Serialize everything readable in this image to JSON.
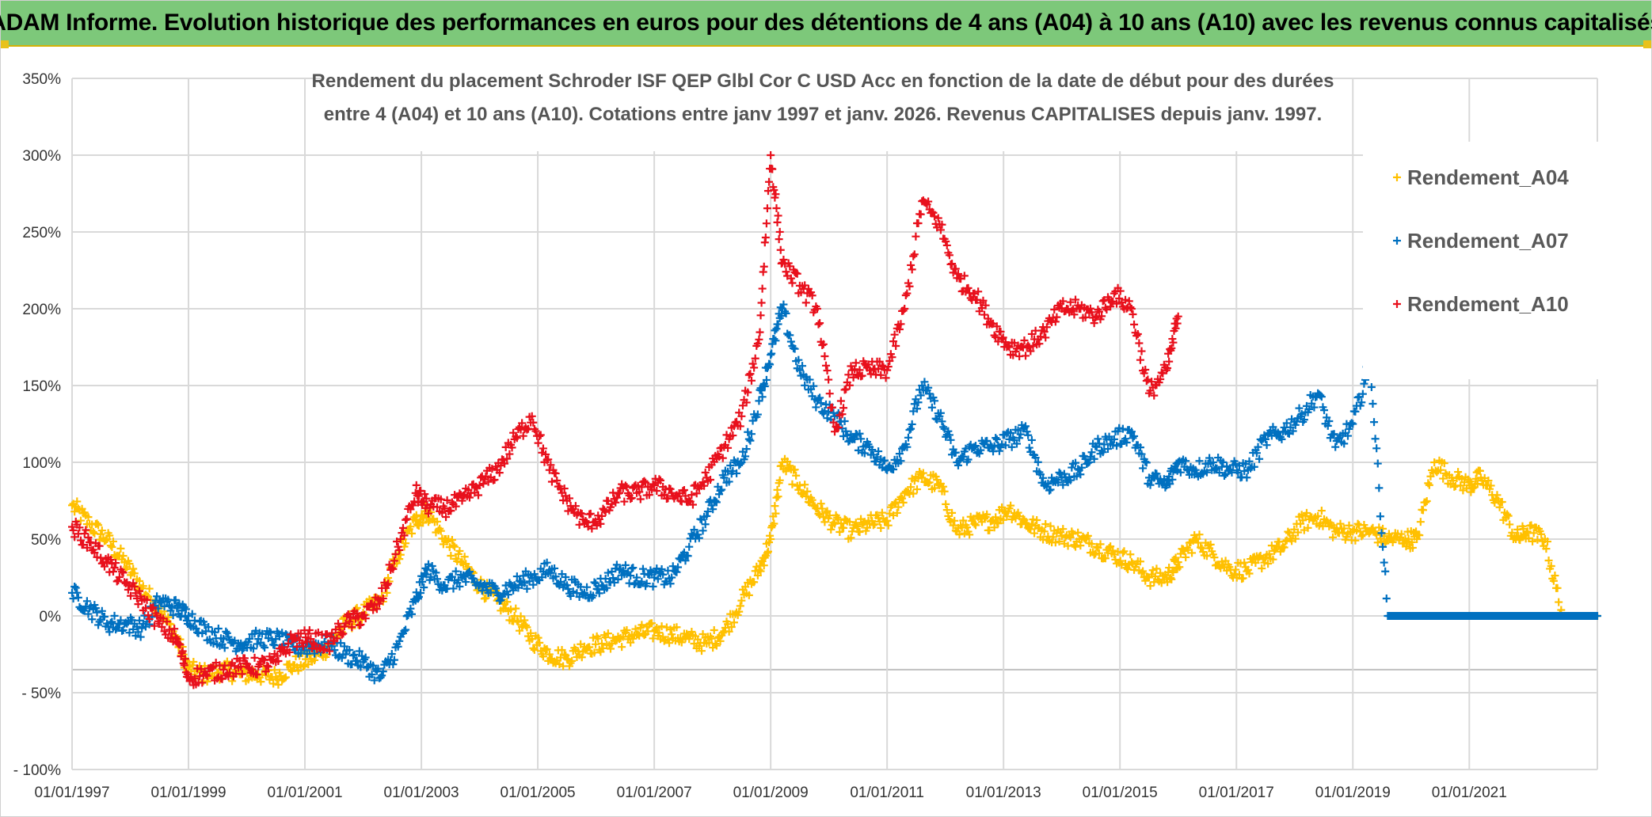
{
  "banner": {
    "title": "ADAM Informe. Evolution historique des performances en euros pour des détentions de 4 ans (A04) à 10 ans (A10) avec les revenus connus capitalisés"
  },
  "colors": {
    "banner_bg": "#7dc87a",
    "A04": "#ffc000",
    "A07": "#0070c0",
    "A10": "#e8101c",
    "grid": "#d9d9d9"
  },
  "chart_data": {
    "type": "scatter",
    "title_lines": [
      "Rendement du placement Schroder ISF QEP Glbl Cor C USD Acc en fonction de la date de début pour des durées",
      "entre 4 (A04) et 10 ans (A10). Cotations entre janv 1997 et janv. 2026. Revenus CAPITALISES depuis janv. 1997."
    ],
    "x_tick_labels": [
      "01/01/1997",
      "01/01/1999",
      "01/01/2001",
      "01/01/2003",
      "01/01/2005",
      "01/01/2007",
      "01/01/2009",
      "01/01/2011",
      "01/01/2013",
      "01/01/2015",
      "01/01/2017",
      "01/01/2019",
      "01/01/2021"
    ],
    "x_ticks": [
      1997,
      1999,
      2001,
      2003,
      2005,
      2007,
      2009,
      2011,
      2013,
      2015,
      2017,
      2019,
      2021
    ],
    "xlim": [
      1997,
      2023.2
    ],
    "y_ticks": [
      -100,
      -50,
      0,
      50,
      100,
      150,
      200,
      250,
      300,
      350
    ],
    "y_tick_labels": [
      "- 100%",
      "- 50%",
      "0%",
      "50%",
      "100%",
      "150%",
      "200%",
      "250%",
      "300%",
      "350%"
    ],
    "ylim": [
      -100,
      350
    ],
    "grid": true,
    "marker": "+",
    "legend_position": "top-right",
    "series": [
      {
        "name": "Rendement_A04",
        "color": "#ffc000",
        "x": [
          1997.0,
          1997.3,
          1997.6,
          1997.9,
          1998.2,
          1998.5,
          1998.8,
          1999.0,
          1999.3,
          1999.6,
          1999.9,
          2000.2,
          2000.5,
          2000.8,
          2001.1,
          2001.4,
          2001.7,
          2002.0,
          2002.3,
          2002.6,
          2002.9,
          2003.1,
          2003.4,
          2003.7,
          2004.0,
          2004.3,
          2004.6,
          2004.9,
          2005.2,
          2005.5,
          2005.8,
          2006.1,
          2006.4,
          2006.7,
          2007.0,
          2007.3,
          2007.6,
          2007.9,
          2008.2,
          2008.5,
          2008.8,
          2009.0,
          2009.2,
          2009.5,
          2009.8,
          2010.1,
          2010.4,
          2010.7,
          2011.0,
          2011.3,
          2011.6,
          2011.9,
          2012.2,
          2012.5,
          2012.8,
          2013.1,
          2013.4,
          2013.7,
          2014.0,
          2014.3,
          2014.6,
          2014.9,
          2015.2,
          2015.5,
          2015.8,
          2016.0,
          2016.3,
          2016.6,
          2016.9,
          2017.2,
          2017.5,
          2017.8,
          2018.1,
          2018.4,
          2018.7,
          2019.0,
          2019.3,
          2019.6,
          2019.9,
          2020.1,
          2020.4,
          2020.7,
          2021.0,
          2021.2,
          2021.5,
          2021.8,
          2022.0,
          2022.3,
          2022.6,
          2022.9,
          2023.2
        ],
        "y": [
          72,
          60,
          50,
          35,
          18,
          5,
          -15,
          -35,
          -38,
          -35,
          -38,
          -38,
          -40,
          -32,
          -28,
          -20,
          -5,
          2,
          10,
          40,
          62,
          68,
          50,
          35,
          20,
          10,
          0,
          -15,
          -25,
          -28,
          -20,
          -18,
          -15,
          -12,
          -10,
          -12,
          -15,
          -18,
          -10,
          10,
          30,
          50,
          100,
          85,
          70,
          60,
          55,
          60,
          62,
          80,
          90,
          85,
          55,
          60,
          62,
          70,
          60,
          55,
          52,
          50,
          45,
          40,
          35,
          25,
          25,
          35,
          50,
          40,
          30,
          30,
          38,
          45,
          60,
          65,
          55,
          55,
          55,
          50,
          50,
          50,
          100,
          90,
          85,
          90,
          75,
          50,
          55,
          50,
          0,
          0,
          0
        ]
      },
      {
        "name": "Rendement_A07",
        "color": "#0070c0",
        "x": [
          1997.0,
          1997.3,
          1997.6,
          1997.9,
          1998.2,
          1998.5,
          1998.8,
          1999.0,
          1999.3,
          1999.6,
          1999.9,
          2000.2,
          2000.5,
          2000.8,
          2001.1,
          2001.4,
          2001.7,
          2002.0,
          2002.3,
          2002.6,
          2002.9,
          2003.1,
          2003.4,
          2003.7,
          2004.0,
          2004.3,
          2004.6,
          2004.9,
          2005.2,
          2005.5,
          2005.8,
          2006.1,
          2006.4,
          2006.7,
          2007.0,
          2007.3,
          2007.6,
          2007.9,
          2008.2,
          2008.5,
          2008.8,
          2009.0,
          2009.2,
          2009.5,
          2009.8,
          2010.1,
          2010.4,
          2010.7,
          2011.0,
          2011.3,
          2011.6,
          2011.9,
          2012.2,
          2012.5,
          2012.8,
          2013.1,
          2013.4,
          2013.7,
          2014.0,
          2014.3,
          2014.6,
          2014.9,
          2015.2,
          2015.5,
          2015.8,
          2016.0,
          2016.3,
          2016.6,
          2016.9,
          2017.2,
          2017.5,
          2017.8,
          2018.1,
          2018.4,
          2018.7,
          2019.0,
          2019.3,
          2019.6,
          2019.9,
          2020.2,
          2020.5,
          2020.8,
          2021.1,
          2021.4,
          2021.7,
          2022.0,
          2022.3,
          2022.6,
          2022.9,
          2023.2
        ],
        "y": [
          15,
          5,
          -5,
          -5,
          -8,
          10,
          5,
          0,
          -10,
          -15,
          -18,
          -15,
          -15,
          -20,
          -20,
          -18,
          -25,
          -30,
          -40,
          -20,
          10,
          30,
          20,
          25,
          20,
          15,
          20,
          25,
          30,
          20,
          15,
          20,
          30,
          25,
          25,
          25,
          45,
          65,
          90,
          100,
          140,
          170,
          200,
          160,
          140,
          130,
          115,
          110,
          95,
          110,
          150,
          130,
          100,
          110,
          110,
          115,
          120,
          85,
          90,
          95,
          110,
          115,
          120,
          90,
          85,
          100,
          95,
          100,
          95,
          95,
          115,
          120,
          130,
          145,
          110,
          125,
          165,
          0,
          0,
          0,
          0,
          0,
          0,
          0,
          0,
          0,
          0,
          0,
          0,
          0
        ],
        "note_zero_from": 2016.1
      },
      {
        "name": "Rendement_A10",
        "color": "#e8101c",
        "x": [
          1997.0,
          1997.3,
          1997.6,
          1997.9,
          1998.2,
          1998.5,
          1998.8,
          1999.0,
          1999.3,
          1999.6,
          1999.9,
          2000.2,
          2000.5,
          2000.8,
          2001.1,
          2001.4,
          2001.7,
          2002.0,
          2002.3,
          2002.6,
          2002.9,
          2003.1,
          2003.4,
          2003.7,
          2004.0,
          2004.3,
          2004.6,
          2004.9,
          2005.2,
          2005.5,
          2005.8,
          2006.1,
          2006.4,
          2006.7,
          2007.0,
          2007.3,
          2007.6,
          2007.9,
          2008.2,
          2008.5,
          2008.8,
          2009.0,
          2009.2,
          2009.5,
          2009.8,
          2010.1,
          2010.4,
          2010.7,
          2011.0,
          2011.3,
          2011.6,
          2011.9,
          2012.2,
          2012.5,
          2012.8,
          2013.1,
          2013.4,
          2013.7,
          2014.0,
          2014.3,
          2014.6,
          2014.9,
          2015.2,
          2015.5,
          2015.8,
          2016.0
        ],
        "y": [
          58,
          48,
          35,
          22,
          10,
          -5,
          -15,
          -40,
          -38,
          -35,
          -33,
          -33,
          -30,
          -15,
          -15,
          -18,
          -5,
          0,
          10,
          45,
          80,
          72,
          70,
          75,
          85,
          95,
          115,
          130,
          95,
          75,
          60,
          65,
          80,
          80,
          85,
          80,
          75,
          90,
          110,
          130,
          180,
          300,
          230,
          215,
          200,
          120,
          160,
          160,
          160,
          200,
          270,
          255,
          220,
          210,
          190,
          175,
          175,
          185,
          200,
          200,
          195,
          210,
          200,
          145,
          160,
          195
        ]
      }
    ]
  }
}
